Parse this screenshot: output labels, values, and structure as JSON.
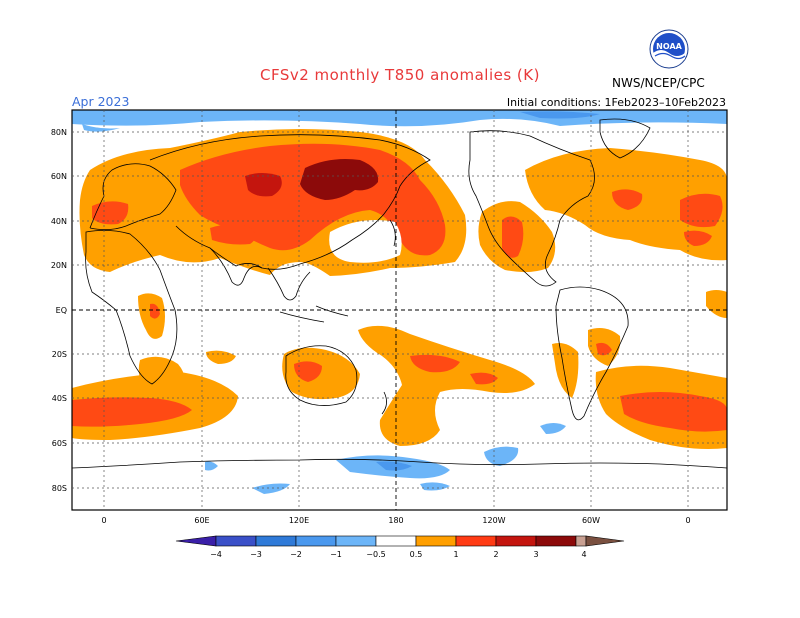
{
  "header": {
    "title": "CFSv2 monthly T850 anomalies (K)",
    "valid_month": "Apr 2023",
    "initial_conditions": "Initial conditions: 1Feb2023–10Feb2023",
    "source": "NWS/NCEP/CPC",
    "logo_text": "NOAA"
  },
  "axes": {
    "latitude_labels": [
      "80N",
      "60N",
      "40N",
      "20N",
      "EQ",
      "20S",
      "40S",
      "60S",
      "80S"
    ],
    "longitude_labels": [
      "0",
      "60E",
      "120E",
      "180",
      "120W",
      "60W",
      "0"
    ]
  },
  "legend": {
    "tick_labels": [
      "−4",
      "−3",
      "−2",
      "−1",
      "−0.5",
      "0.5",
      "1",
      "2",
      "3",
      "4"
    ],
    "colors": [
      "#3a1fa8",
      "#3a50c8",
      "#2f7ad8",
      "#4a98ee",
      "#6cb5f8",
      "#ffffff",
      "#ff9f00",
      "#ff3b14",
      "#c4150e",
      "#8c0a0a",
      "#c9a092",
      "#7a5040"
    ]
  },
  "colors": {
    "title": "#e8393a",
    "valid_month": "#3b6fd8",
    "warm_1": "#ffa000",
    "warm_2": "#ff4a14",
    "warm_3": "#d01c0e",
    "warm_4": "#8c0a0a",
    "cool_1": "#6cb5f8",
    "cool_2": "#4a98ee"
  }
}
